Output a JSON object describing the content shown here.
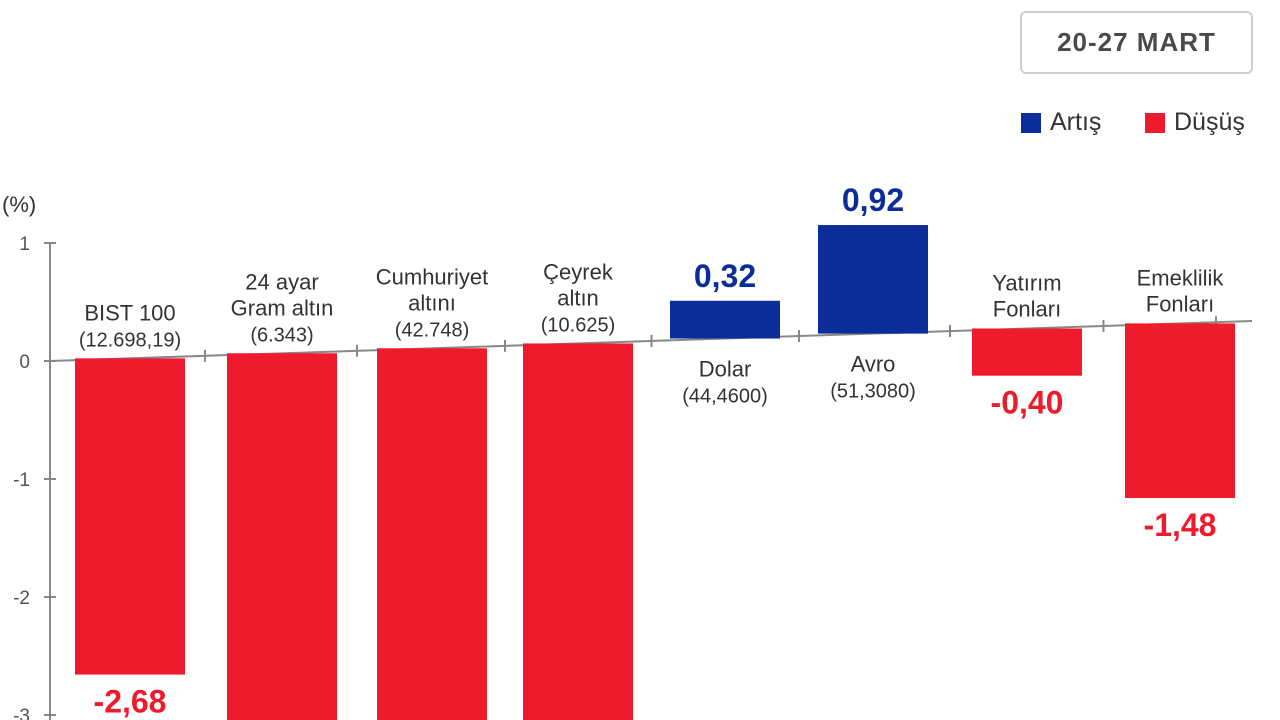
{
  "period": "20-27 MART",
  "legend": {
    "increase": "Artış",
    "decrease": "Düşüş"
  },
  "colors": {
    "increase": "#0b2d9a",
    "decrease": "#ee1b2d",
    "axis": "#888888",
    "text": "#333333"
  },
  "chart_data": {
    "type": "bar",
    "ylabel": "(%)",
    "ylim": [
      -3,
      1
    ],
    "yticks": [
      "1",
      "0",
      "-1",
      "-2",
      "-3"
    ],
    "categories": [
      {
        "lines": [
          "BIST 100"
        ],
        "sub": "(12.698,19)"
      },
      {
        "lines": [
          "24 ayar",
          "Gram altın"
        ],
        "sub": "(6.343)"
      },
      {
        "lines": [
          "Cumhuriyet",
          "altını"
        ],
        "sub": "(42.748)"
      },
      {
        "lines": [
          "Çeyrek",
          "altın"
        ],
        "sub": "(10.625)"
      },
      {
        "lines": [
          "Dolar"
        ],
        "sub": "(44,4600)"
      },
      {
        "lines": [
          "Avro"
        ],
        "sub": "(51,3080)"
      },
      {
        "lines": [
          "Yatırım",
          "Fonları"
        ],
        "sub": ""
      },
      {
        "lines": [
          "Emeklilik",
          "Fonları"
        ],
        "sub": ""
      }
    ],
    "values": [
      -2.68,
      null,
      null,
      null,
      0.32,
      0.92,
      -0.4,
      -1.48
    ],
    "labels": [
      "-2,68",
      "",
      "",
      "",
      "0,32",
      "0,92",
      "-0,40",
      "-1,48"
    ]
  }
}
